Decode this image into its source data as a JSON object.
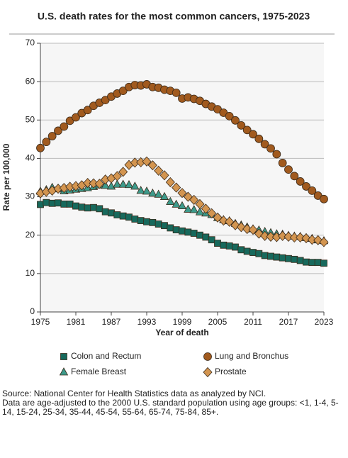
{
  "chart_data": {
    "type": "line",
    "title": "U.S. death rates for the most common cancers, 1975-2023",
    "x_label": "Year of death",
    "y_label": "Rate per 100,000",
    "x": [
      1975,
      1976,
      1977,
      1978,
      1979,
      1980,
      1981,
      1982,
      1983,
      1984,
      1985,
      1986,
      1987,
      1988,
      1989,
      1990,
      1991,
      1992,
      1993,
      1994,
      1995,
      1996,
      1997,
      1998,
      1999,
      2000,
      2001,
      2002,
      2003,
      2004,
      2005,
      2006,
      2007,
      2008,
      2009,
      2010,
      2011,
      2012,
      2013,
      2014,
      2015,
      2016,
      2017,
      2018,
      2019,
      2020,
      2021,
      2022,
      2023
    ],
    "series": [
      {
        "name": "Lung and Bronchus",
        "color": "#a15a1e",
        "marker": "circle",
        "values": [
          42.7,
          44.3,
          45.8,
          47.2,
          48.3,
          49.8,
          50.7,
          51.8,
          52.6,
          53.7,
          54.5,
          55.2,
          56.1,
          56.9,
          57.6,
          58.6,
          59.1,
          59.0,
          59.3,
          58.6,
          58.4,
          57.9,
          57.6,
          57.1,
          55.6,
          55.9,
          55.5,
          55.0,
          54.2,
          53.5,
          52.8,
          51.9,
          51.0,
          49.9,
          48.6,
          47.4,
          46.3,
          45.1,
          43.7,
          42.6,
          41.1,
          38.8,
          37.1,
          35.4,
          34.0,
          32.7,
          31.6,
          30.3,
          29.4
        ]
      },
      {
        "name": "Female Breast",
        "color": "#3d9a8b",
        "marker": "triangle",
        "values": [
          31.4,
          31.8,
          32.4,
          32.0,
          31.5,
          31.7,
          31.9,
          32.1,
          32.3,
          32.6,
          33.0,
          32.9,
          32.7,
          33.2,
          33.2,
          33.1,
          32.7,
          31.6,
          31.4,
          30.9,
          30.6,
          30.0,
          28.7,
          28.0,
          27.6,
          26.7,
          26.6,
          26.0,
          25.7,
          25.3,
          24.5,
          24.0,
          23.7,
          23.0,
          22.6,
          22.1,
          21.6,
          21.3,
          20.9,
          20.6,
          20.3,
          20.2,
          19.9,
          19.7,
          19.6,
          19.3,
          19.1,
          18.7,
          18.5
        ]
      },
      {
        "name": "Prostate",
        "color": "#d39550",
        "marker": "diamond",
        "values": [
          30.9,
          31.3,
          31.6,
          32.1,
          32.3,
          32.6,
          32.8,
          33.0,
          33.6,
          33.5,
          33.4,
          34.5,
          34.8,
          35.4,
          36.5,
          38.3,
          38.9,
          39.0,
          39.2,
          38.2,
          36.8,
          35.6,
          33.8,
          32.4,
          31.0,
          30.0,
          29.2,
          28.1,
          26.9,
          25.7,
          24.6,
          23.8,
          23.5,
          22.6,
          22.1,
          21.6,
          21.4,
          20.4,
          19.8,
          19.6,
          19.5,
          19.8,
          19.6,
          19.4,
          19.4,
          19.2,
          18.8,
          18.7,
          18.2
        ]
      },
      {
        "name": "Colon and Rectum",
        "color": "#17695c",
        "marker": "square",
        "values": [
          28.0,
          28.5,
          28.3,
          28.4,
          28.1,
          28.1,
          27.6,
          27.3,
          27.1,
          27.2,
          26.9,
          26.1,
          25.8,
          25.3,
          25.0,
          24.7,
          24.2,
          23.8,
          23.5,
          23.3,
          22.9,
          22.5,
          21.9,
          21.4,
          21.1,
          20.8,
          20.5,
          20.0,
          19.5,
          18.8,
          17.9,
          17.4,
          17.2,
          16.9,
          16.2,
          15.8,
          15.5,
          15.2,
          14.7,
          14.5,
          14.3,
          14.1,
          13.9,
          13.7,
          13.4,
          13.0,
          12.9,
          12.9,
          12.7
        ]
      }
    ],
    "legend_order": [
      3,
      0,
      1,
      2
    ],
    "xlim": [
      1975,
      2023
    ],
    "xticks": [
      1975,
      1981,
      1987,
      1993,
      1999,
      2005,
      2011,
      2017,
      2023
    ],
    "ylim": [
      0,
      70
    ],
    "yticks": [
      0,
      10,
      20,
      30,
      40,
      50,
      60,
      70
    ],
    "grid": true,
    "notes": [
      "Source: National Center for Health Statistics data as analyzed by NCI.",
      "Data are age-adjusted to the 2000 U.S. standard population using age groups: <1, 1-4, 5-14, 15-24, 25-34, 35-44, 45-54, 55-64, 65-74, 75-84, 85+."
    ]
  }
}
